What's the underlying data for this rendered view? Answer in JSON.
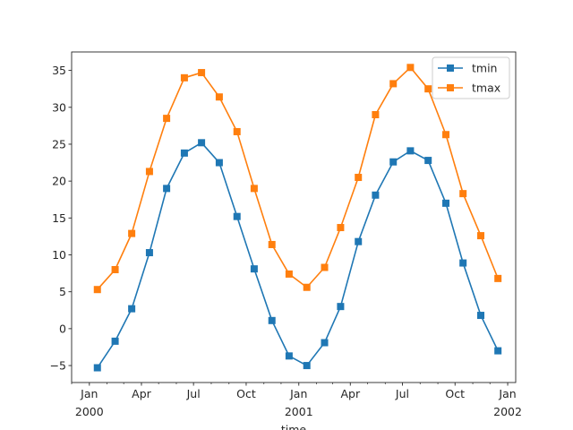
{
  "chart_data": {
    "type": "line",
    "xlabel": "time",
    "ylabel": "",
    "title": "",
    "legend_position": "top-right",
    "grid": false,
    "xlim": [
      "1999-12-01",
      "2002-01-15"
    ],
    "ylim": [
      -7.3,
      37.5
    ],
    "x_major_ticks": [
      {
        "date": "2000-01-01",
        "label": "Jan",
        "sublabel": "2000"
      },
      {
        "date": "2000-04-01",
        "label": "Apr",
        "sublabel": ""
      },
      {
        "date": "2000-07-01",
        "label": "Jul",
        "sublabel": ""
      },
      {
        "date": "2000-10-01",
        "label": "Oct",
        "sublabel": ""
      },
      {
        "date": "2001-01-01",
        "label": "Jan",
        "sublabel": "2001"
      },
      {
        "date": "2001-04-01",
        "label": "Apr",
        "sublabel": ""
      },
      {
        "date": "2001-07-01",
        "label": "Jul",
        "sublabel": ""
      },
      {
        "date": "2001-10-01",
        "label": "Oct",
        "sublabel": ""
      },
      {
        "date": "2002-01-01",
        "label": "Jan",
        "sublabel": "2002"
      }
    ],
    "y_ticks": [
      -5,
      0,
      5,
      10,
      15,
      20,
      25,
      30,
      35
    ],
    "x": [
      "2000-01-15",
      "2000-02-15",
      "2000-03-15",
      "2000-04-15",
      "2000-05-15",
      "2000-06-15",
      "2000-07-15",
      "2000-08-15",
      "2000-09-15",
      "2000-10-15",
      "2000-11-15",
      "2000-12-15",
      "2001-01-15",
      "2001-02-15",
      "2001-03-15",
      "2001-04-15",
      "2001-05-15",
      "2001-06-15",
      "2001-07-15",
      "2001-08-15",
      "2001-09-15",
      "2001-10-15",
      "2001-11-15",
      "2001-12-15"
    ],
    "series": [
      {
        "name": "tmin",
        "color": "#1f77b4",
        "marker": "square",
        "values": [
          -5.3,
          -1.7,
          2.7,
          10.3,
          19.0,
          23.8,
          25.2,
          22.5,
          15.2,
          8.1,
          1.1,
          -3.7,
          -5.0,
          -1.9,
          3.0,
          11.8,
          18.1,
          22.6,
          24.1,
          22.8,
          17.0,
          8.9,
          1.8,
          -3.0
        ]
      },
      {
        "name": "tmax",
        "color": "#ff7f0e",
        "marker": "square",
        "values": [
          5.3,
          8.0,
          12.9,
          21.3,
          28.5,
          34.0,
          34.7,
          31.4,
          26.7,
          19.0,
          11.4,
          7.4,
          5.6,
          8.3,
          13.7,
          20.5,
          29.0,
          33.2,
          35.4,
          32.5,
          26.3,
          18.3,
          12.6,
          6.8
        ]
      }
    ]
  }
}
